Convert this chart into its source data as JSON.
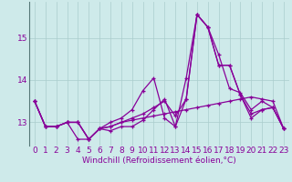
{
  "xlabel": "Windchill (Refroidissement éolien,°C)",
  "background_color": "#ceeaea",
  "grid_color": "#aacccc",
  "line_color": "#880099",
  "hours": [
    0,
    1,
    2,
    3,
    4,
    5,
    6,
    7,
    8,
    9,
    10,
    11,
    12,
    13,
    14,
    15,
    16,
    17,
    18,
    19,
    20,
    21,
    22,
    23
  ],
  "series1": [
    13.5,
    12.9,
    12.9,
    13.0,
    13.0,
    12.6,
    12.85,
    12.9,
    13.0,
    13.05,
    13.1,
    13.15,
    13.2,
    13.25,
    13.3,
    13.35,
    13.4,
    13.45,
    13.5,
    13.55,
    13.6,
    13.55,
    13.5,
    12.85
  ],
  "series2": [
    13.5,
    12.9,
    12.9,
    13.0,
    13.0,
    12.6,
    12.85,
    12.9,
    13.0,
    13.1,
    13.2,
    13.35,
    13.5,
    13.15,
    13.55,
    15.55,
    15.25,
    14.35,
    14.35,
    13.65,
    13.2,
    13.3,
    13.35,
    12.85
  ],
  "series3": [
    13.5,
    12.9,
    12.9,
    13.0,
    12.6,
    12.6,
    12.85,
    12.8,
    12.9,
    12.9,
    13.05,
    13.3,
    13.55,
    12.9,
    14.05,
    15.55,
    15.25,
    14.35,
    14.35,
    13.65,
    13.1,
    13.3,
    13.35,
    12.85
  ],
  "series4": [
    13.5,
    12.9,
    12.9,
    13.0,
    13.0,
    12.6,
    12.85,
    13.0,
    13.1,
    13.3,
    13.75,
    14.05,
    13.1,
    12.9,
    13.55,
    15.55,
    15.25,
    14.6,
    13.8,
    13.7,
    13.3,
    13.5,
    13.35,
    12.85
  ],
  "ylim": [
    12.45,
    15.85
  ],
  "yticks": [
    13,
    14,
    15
  ],
  "tick_fontsize": 6.5,
  "xlabel_fontsize": 6.5,
  "marker_size": 2.5,
  "line_width": 0.9
}
